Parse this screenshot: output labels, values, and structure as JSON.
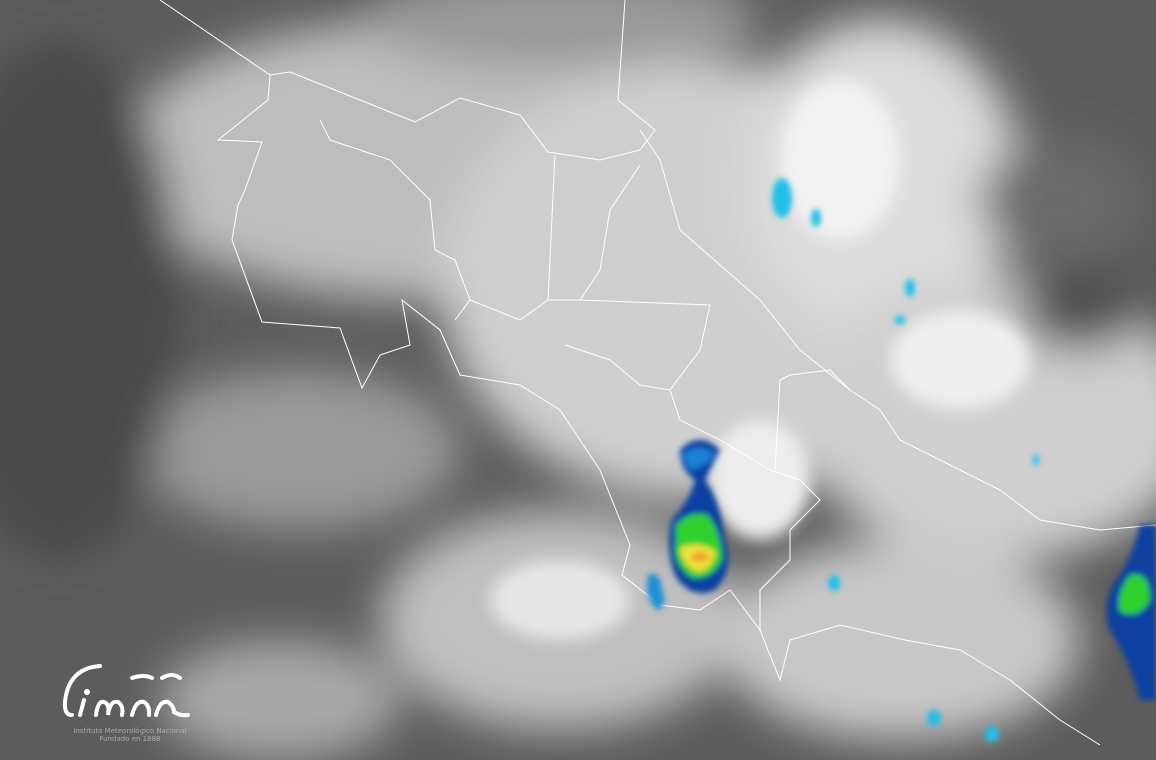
{
  "map": {
    "type": "satellite-infrared",
    "region": "Costa Rica",
    "colors": {
      "cloud_light": "#e8e8e8",
      "cloud_dark": "#5a5a5a",
      "border": "#ffffff",
      "cold_top_cyan": "#22c0e8",
      "cold_top_blue": "#0a3fa0",
      "cold_top_green": "#2fd12f",
      "cold_top_yellow": "#f2e23a",
      "cold_top_orange": "#f0a030"
    }
  },
  "logo": {
    "mark": "imn",
    "line1": "Instituto Meteorológico Nacional",
    "line2": "Fundado en 1888"
  }
}
